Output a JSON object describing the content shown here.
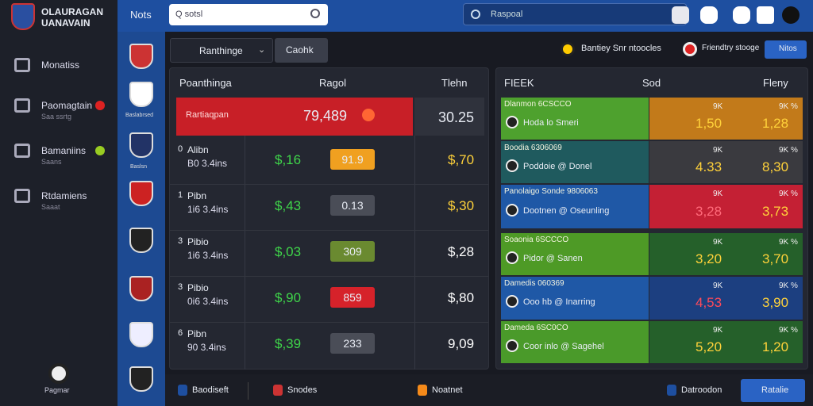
{
  "sidebar": {
    "logo": [
      "OLAURAGAN",
      "UANAVAIN"
    ],
    "menu": [
      {
        "label": "Monatiss"
      },
      {
        "label": "Paomagtain",
        "sub": "Saa ssrtg"
      },
      {
        "label": "Bamaniins",
        "sub": "Saans"
      },
      {
        "label": "Rtdamiens",
        "sub": "Saaat"
      }
    ],
    "footer": "Pagmar"
  },
  "topbar": {
    "title": "Nots",
    "search": "Q sotsl",
    "search2": "Raspoal"
  },
  "teams": [
    "Baslabrsed",
    "Baslsn"
  ],
  "toolbar": {
    "dropdown": "Ranthinge",
    "button": "Caohk",
    "right1": "Bantiey Snr ntoocles",
    "right2": "Friendtry stooge",
    "right_button": "Nitos"
  },
  "left_panel": {
    "headers": [
      "Poanthinga",
      "Ragol",
      "Tlehn"
    ],
    "highlight": {
      "label": "Rartiaqpan",
      "value": "79,489",
      "right": "30.25"
    },
    "rows": [
      {
        "num": "0",
        "name": "Alibn",
        "sub": "B0 3.4ins",
        "odds": "$,16",
        "badge": "91.9",
        "right": "$,70"
      },
      {
        "num": "1",
        "name": "Pibn",
        "sub": "1i6 3.4ins",
        "odds": "$,43",
        "badge": "0.13",
        "right": "$,30"
      },
      {
        "num": "3",
        "name": "Pibio",
        "sub": "1i6 3.4ins",
        "odds": "$,03",
        "badge": "309",
        "right": "$,28"
      },
      {
        "num": "3",
        "name": "Pibio",
        "sub": "0i6 3.4ins",
        "odds": "$,90",
        "badge": "859",
        "right": "$,80"
      },
      {
        "num": "6",
        "name": "Pibn",
        "sub": "90 3.4ins",
        "odds": "$,39",
        "badge": "233",
        "right": "9,09"
      }
    ]
  },
  "right_panel": {
    "headers": [
      "FIEEK",
      "Sod",
      "Fleny"
    ],
    "rows": [
      {
        "title": "Dlanmon 6CSCCO",
        "team": "Hoda lo Smeri",
        "a_label": "9K",
        "a": "1,50",
        "b_label": "9K %",
        "b": "1,28"
      },
      {
        "title": "Boodia 6306069",
        "team": "Poddoie @ Donel",
        "a_label": "9K",
        "a": "4.33",
        "b_label": "9K %",
        "b": "8,30"
      },
      {
        "title": "Panolaigo Sonde 9806063",
        "team": "Dootnen @ Oseunling",
        "a_label": "9K",
        "a": "3,28",
        "b_label": "9K %",
        "b": "3,73"
      },
      {
        "title": "Soaonia 6SCCCO",
        "team": "Pidor @ Sanen",
        "a_label": "9K",
        "a": "3,20",
        "b_label": "9K %",
        "b": "3,70"
      },
      {
        "title": "Damedis 060369",
        "team": "Ooo hb @ Inarring",
        "a_label": "9K",
        "a": "4,53",
        "b_label": "9K %",
        "b": "3,90"
      },
      {
        "title": "Dameda 6SC0CO",
        "team": "Coor inlo @ Sagehel",
        "a_label": "9K",
        "a": "5,20",
        "b_label": "9K %",
        "b": "1,20"
      }
    ]
  },
  "bottom": {
    "items": [
      "Baodiseft",
      "Snodes",
      "Noatnet",
      "Datroodon"
    ],
    "button": "Ratalie"
  }
}
